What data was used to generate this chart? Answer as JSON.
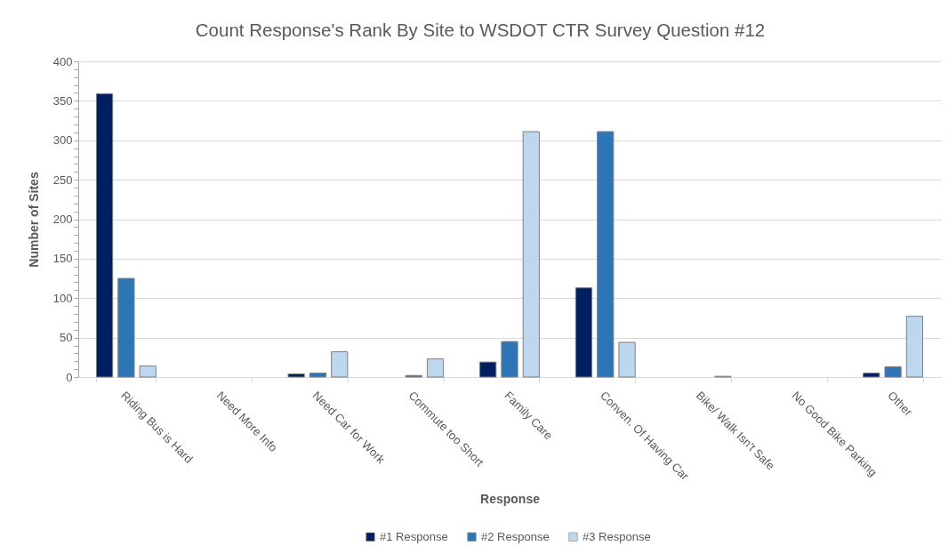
{
  "chart_data": {
    "type": "bar",
    "title": "Count Response's Rank By Site to WSDOT CTR Survey Question #12",
    "xlabel": "Response",
    "ylabel": "Number of Sites",
    "categories": [
      "Riding Bus is Hard",
      "Need More Info",
      "Need Car for Work",
      "Commute too Short",
      "Family Care",
      "Conven. Of Having Car",
      "Bike/ Walk Isn't Safe",
      "No Good Bike Parking",
      "Other"
    ],
    "series": [
      {
        "name": "#1 Response",
        "color": "#002060",
        "values": [
          359,
          0,
          4,
          0,
          19,
          113,
          0,
          0,
          5
        ]
      },
      {
        "name": "#2 Response",
        "color": "#2e75b6",
        "values": [
          125,
          0,
          5,
          2,
          45,
          311,
          0,
          0,
          13
        ]
      },
      {
        "name": "#3 Response",
        "color": "#bdd7ee",
        "values": [
          14,
          0,
          32,
          23,
          311,
          44,
          1,
          0,
          77
        ]
      }
    ],
    "ylim": [
      0,
      400
    ],
    "yticks": [
      0,
      {
        "value": 10,
        "label": null
      },
      {
        "value": 20,
        "label": null
      },
      {
        "value": 30,
        "label": null
      },
      {
        "value": 40,
        "label": null
      },
      50,
      {
        "value": 60,
        "label": null
      },
      {
        "value": 70,
        "label": null
      },
      {
        "value": 80,
        "label": null
      },
      {
        "value": 90,
        "label": null
      },
      100,
      {
        "value": 110,
        "label": null
      },
      {
        "value": 120,
        "label": null
      },
      {
        "value": 130,
        "label": null
      },
      {
        "value": 140,
        "label": null
      },
      150,
      {
        "value": 160,
        "label": null
      },
      {
        "value": 170,
        "label": null
      },
      {
        "value": 180,
        "label": null
      },
      {
        "value": 190,
        "label": null
      },
      200,
      {
        "value": 210,
        "label": null
      },
      {
        "value": 220,
        "label": null
      },
      {
        "value": 230,
        "label": null
      },
      {
        "value": 240,
        "label": null
      },
      250,
      {
        "value": 260,
        "label": null
      },
      {
        "value": 270,
        "label": null
      },
      {
        "value": 280,
        "label": null
      },
      {
        "value": 290,
        "label": null
      },
      300,
      {
        "value": 310,
        "label": null
      },
      {
        "value": 320,
        "label": null
      },
      {
        "value": 330,
        "label": null
      },
      {
        "value": 340,
        "label": null
      },
      350,
      {
        "value": 360,
        "label": null
      },
      {
        "value": 370,
        "label": null
      },
      {
        "value": 380,
        "label": null
      },
      {
        "value": 390,
        "label": null
      },
      400
    ],
    "grid": "y",
    "legend": "bottom"
  }
}
